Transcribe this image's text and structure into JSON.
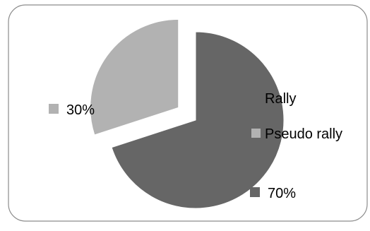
{
  "chart_data": {
    "type": "pie",
    "exploded": true,
    "categories": [
      "Rally",
      "Pseudo rally"
    ],
    "values": [
      70,
      30
    ],
    "value_labels": [
      "70%",
      "30%"
    ],
    "colors": [
      "#666666",
      "#b2b2b2"
    ],
    "legend": {
      "placement": "right",
      "entries": [
        "Rally",
        "Pseudo rally"
      ]
    },
    "title": "",
    "xlabel": "",
    "ylabel": ""
  }
}
